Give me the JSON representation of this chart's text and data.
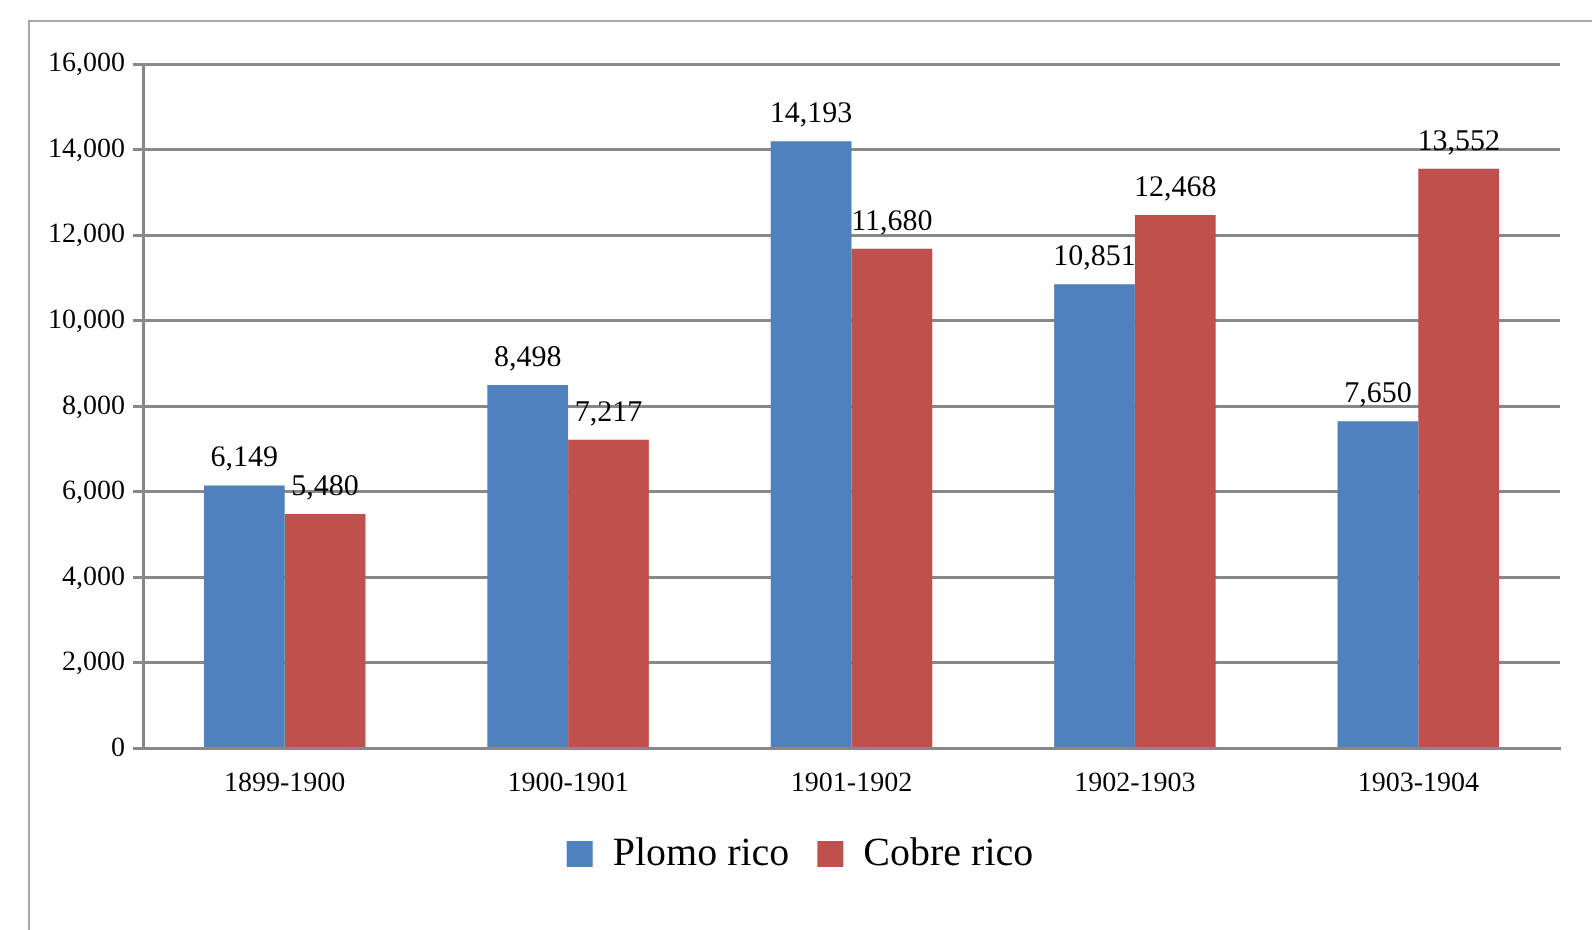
{
  "chart_data": {
    "type": "bar",
    "categories": [
      "1899-1900",
      "1900-1901",
      "1901-1902",
      "1902-1903",
      "1903-1904"
    ],
    "series": [
      {
        "name": "Plomo rico",
        "color": "#4f81bd",
        "values": [
          6149,
          8498,
          14193,
          10851,
          7650
        ],
        "value_labels": [
          "6,149",
          "8,498",
          "14,193",
          "10,851",
          "7,650"
        ]
      },
      {
        "name": "Cobre rico",
        "color": "#c0504d",
        "values": [
          5480,
          7217,
          11680,
          12468,
          13552
        ],
        "value_labels": [
          "5,480",
          "7,217",
          "11,680",
          "12,468",
          "13,552"
        ]
      }
    ],
    "ylim": [
      0,
      16000
    ],
    "yticks": [
      {
        "value": 0,
        "label": "0"
      },
      {
        "value": 2000,
        "label": "2,000"
      },
      {
        "value": 4000,
        "label": "4,000"
      },
      {
        "value": 6000,
        "label": "6,000"
      },
      {
        "value": 8000,
        "label": "8,000"
      },
      {
        "value": 10000,
        "label": "10,000"
      },
      {
        "value": 12000,
        "label": "12,000"
      },
      {
        "value": 14000,
        "label": "14,000"
      },
      {
        "value": 16000,
        "label": "16,000"
      }
    ],
    "grid": "y",
    "legend": "bottom"
  }
}
